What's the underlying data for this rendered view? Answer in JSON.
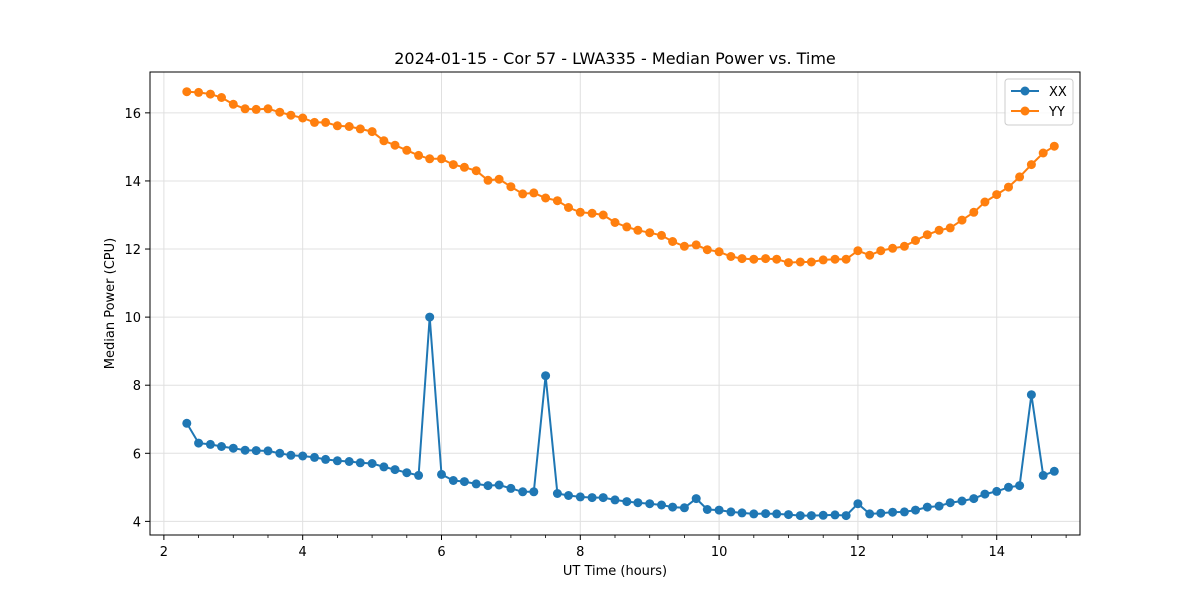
{
  "chart_data": {
    "type": "line",
    "title": "2024-01-15 - Cor 57 - LWA335 - Median Power vs. Time",
    "xlabel": "UT Time (hours)",
    "ylabel": "Median Power (CPU)",
    "xlim": [
      1.8,
      15.2
    ],
    "ylim": [
      3.6,
      17.2
    ],
    "xticks": [
      2,
      4,
      6,
      8,
      10,
      12,
      14
    ],
    "yticks": [
      4,
      6,
      8,
      10,
      12,
      14,
      16
    ],
    "grid": true,
    "legend_position": "top-right",
    "colors": {
      "XX": "#1f77b4",
      "YY": "#ff7f0e",
      "grid": "#e0e0e0",
      "axis": "#000000"
    },
    "series": [
      {
        "name": "XX",
        "marker": "circle",
        "x": [
          2.33,
          2.5,
          2.67,
          2.83,
          3.0,
          3.17,
          3.33,
          3.5,
          3.67,
          3.83,
          4.0,
          4.17,
          4.33,
          4.5,
          4.67,
          4.83,
          5.0,
          5.17,
          5.33,
          5.5,
          5.67,
          5.83,
          6.0,
          6.17,
          6.33,
          6.5,
          6.67,
          6.83,
          7.0,
          7.17,
          7.33,
          7.5,
          7.67,
          7.83,
          8.0,
          8.17,
          8.33,
          8.5,
          8.67,
          8.83,
          9.0,
          9.17,
          9.33,
          9.5,
          9.67,
          9.83,
          10.0,
          10.17,
          10.33,
          10.5,
          10.67,
          10.83,
          11.0,
          11.17,
          11.33,
          11.5,
          11.67,
          11.83,
          12.0,
          12.17,
          12.33,
          12.5,
          12.67,
          12.83,
          13.0,
          13.17,
          13.33,
          13.5,
          13.67,
          13.83,
          14.0,
          14.17,
          14.33,
          14.5,
          14.67,
          14.83
        ],
        "y": [
          6.88,
          6.3,
          6.26,
          6.2,
          6.15,
          6.09,
          6.08,
          6.07,
          6.0,
          5.94,
          5.92,
          5.88,
          5.82,
          5.78,
          5.76,
          5.72,
          5.7,
          5.6,
          5.52,
          5.43,
          5.35,
          10.0,
          5.38,
          5.2,
          5.17,
          5.1,
          5.05,
          5.07,
          4.97,
          4.87,
          4.87,
          8.28,
          4.82,
          4.76,
          4.72,
          4.7,
          4.7,
          4.63,
          4.58,
          4.55,
          4.52,
          4.48,
          4.42,
          4.4,
          4.67,
          4.35,
          4.33,
          4.28,
          4.25,
          4.22,
          4.23,
          4.22,
          4.2,
          4.17,
          4.17,
          4.18,
          4.19,
          4.17,
          4.52,
          4.22,
          4.24,
          4.27,
          4.28,
          4.33,
          4.42,
          4.45,
          4.55,
          4.6,
          4.67,
          4.8,
          4.88,
          5.0,
          5.05,
          7.72,
          5.35,
          5.47
        ]
      },
      {
        "name": "YY",
        "marker": "circle",
        "x": [
          2.33,
          2.5,
          2.67,
          2.83,
          3.0,
          3.17,
          3.33,
          3.5,
          3.67,
          3.83,
          4.0,
          4.17,
          4.33,
          4.5,
          4.67,
          4.83,
          5.0,
          5.17,
          5.33,
          5.5,
          5.67,
          5.83,
          6.0,
          6.17,
          6.33,
          6.5,
          6.67,
          6.83,
          7.0,
          7.17,
          7.33,
          7.5,
          7.67,
          7.83,
          8.0,
          8.17,
          8.33,
          8.5,
          8.67,
          8.83,
          9.0,
          9.17,
          9.33,
          9.5,
          9.67,
          9.83,
          10.0,
          10.17,
          10.33,
          10.5,
          10.67,
          10.83,
          11.0,
          11.17,
          11.33,
          11.5,
          11.67,
          11.83,
          12.0,
          12.17,
          12.33,
          12.5,
          12.67,
          12.83,
          13.0,
          13.17,
          13.33,
          13.5,
          13.67,
          13.83,
          14.0,
          14.17,
          14.33,
          14.5,
          14.67,
          14.83
        ],
        "y": [
          16.62,
          16.6,
          16.55,
          16.45,
          16.25,
          16.12,
          16.1,
          16.12,
          16.02,
          15.93,
          15.85,
          15.72,
          15.72,
          15.62,
          15.6,
          15.53,
          15.45,
          15.18,
          15.05,
          14.9,
          14.75,
          14.65,
          14.65,
          14.48,
          14.4,
          14.3,
          14.02,
          14.05,
          13.83,
          13.62,
          13.65,
          13.5,
          13.42,
          13.22,
          13.08,
          13.05,
          13.0,
          12.78,
          12.65,
          12.55,
          12.48,
          12.4,
          12.22,
          12.08,
          12.12,
          11.98,
          11.92,
          11.78,
          11.72,
          11.7,
          11.72,
          11.7,
          11.6,
          11.62,
          11.62,
          11.68,
          11.7,
          11.7,
          11.95,
          11.82,
          11.95,
          12.02,
          12.08,
          12.25,
          12.42,
          12.55,
          12.62,
          12.85,
          13.08,
          13.38,
          13.6,
          13.82,
          14.12,
          14.48,
          14.82,
          15.02
        ]
      }
    ]
  }
}
